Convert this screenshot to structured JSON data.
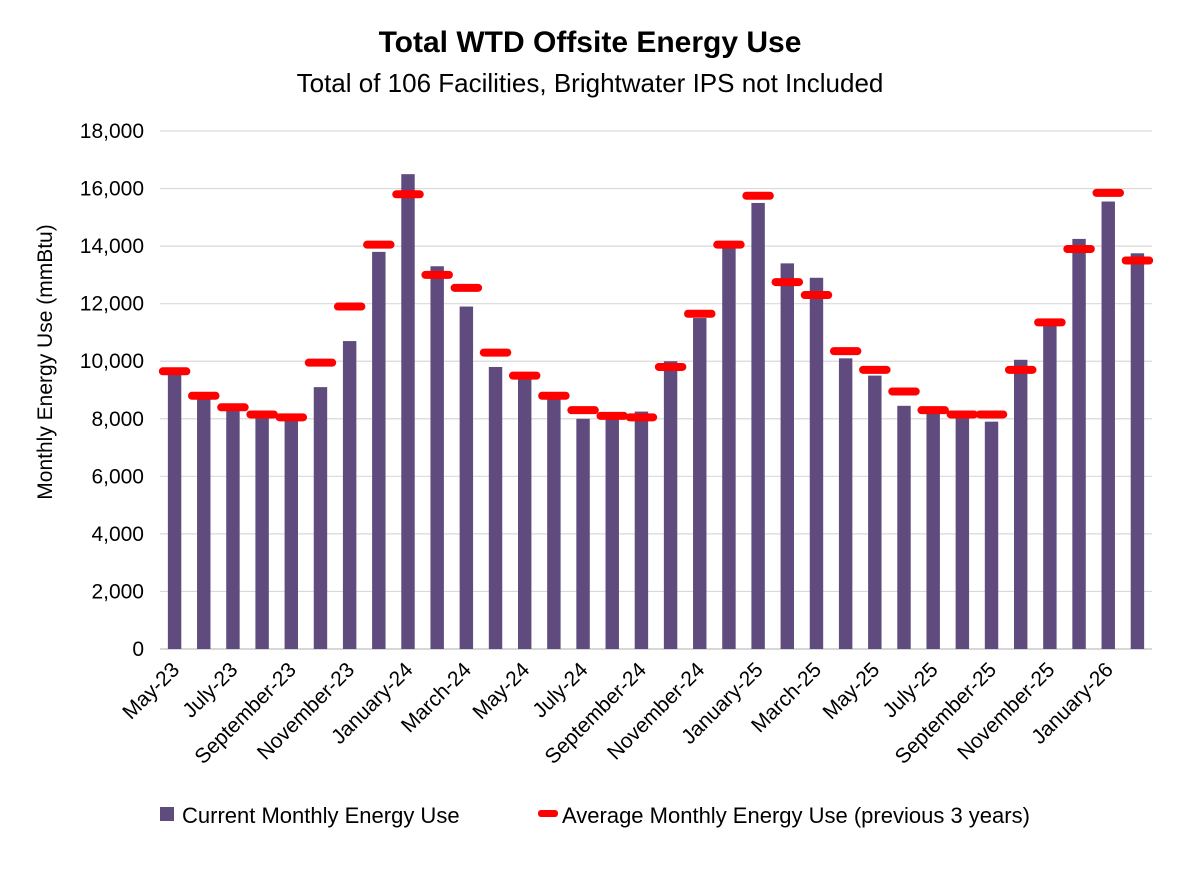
{
  "chart_data": {
    "type": "bar",
    "title": "Total WTD Offsite Energy Use",
    "subtitle": "Total of 106 Facilities, Brightwater IPS not Included",
    "ylabel": "Monthly Energy Use (mmBtu)",
    "xlabel": "",
    "ylim": [
      0,
      18000
    ],
    "yticks": [
      0,
      2000,
      4000,
      6000,
      8000,
      10000,
      12000,
      14000,
      16000,
      18000
    ],
    "ytick_labels": [
      "0",
      "2,000",
      "4,000",
      "6,000",
      "8,000",
      "10,000",
      "12,000",
      "14,000",
      "16,000",
      "18,000"
    ],
    "grid": true,
    "legend_position": "bottom",
    "categories": [
      "May-23",
      "June-23",
      "July-23",
      "August-23",
      "September-23",
      "October-23",
      "November-23",
      "December-23",
      "January-24",
      "February-24",
      "March-24",
      "April-24",
      "May-24",
      "June-24",
      "July-24",
      "August-24",
      "September-24",
      "October-24",
      "November-24",
      "December-24",
      "January-25",
      "February-25",
      "March-25",
      "April-25",
      "May-25",
      "June-25",
      "July-25",
      "August-25",
      "September-25",
      "October-25",
      "November-25",
      "December-25",
      "January-26",
      "February-26"
    ],
    "xtick_labels": [
      "May-23",
      "July-23",
      "September-23",
      "November-23",
      "January-24",
      "March-24",
      "May-24",
      "July-24",
      "September-24",
      "November-24",
      "January-25",
      "March-25",
      "May-25",
      "July-25",
      "September-25",
      "November-25",
      "January-26"
    ],
    "series": [
      {
        "name": "Current Monthly Energy Use",
        "kind": "bar",
        "color": "#5f4b7e",
        "values": [
          9750,
          8800,
          8300,
          8100,
          8000,
          9100,
          10700,
          13800,
          16500,
          13300,
          11900,
          9800,
          9500,
          8700,
          8000,
          8100,
          8250,
          10000,
          11500,
          14100,
          15500,
          13400,
          12900,
          10100,
          9500,
          8450,
          8250,
          8150,
          7900,
          10050,
          11450,
          14250,
          15550,
          13750
        ]
      },
      {
        "name": "Average Monthly Energy Use (previous 3 years)",
        "kind": "marker",
        "color": "#ff0000",
        "values": [
          9650,
          8800,
          8400,
          8150,
          8050,
          9950,
          11900,
          14050,
          15800,
          13000,
          12550,
          10300,
          9500,
          8800,
          8300,
          8100,
          8050,
          9800,
          11650,
          14050,
          15750,
          12750,
          12300,
          10350,
          9700,
          8950,
          8300,
          8150,
          8150,
          9700,
          11350,
          13900,
          15850,
          13500
        ]
      }
    ]
  }
}
